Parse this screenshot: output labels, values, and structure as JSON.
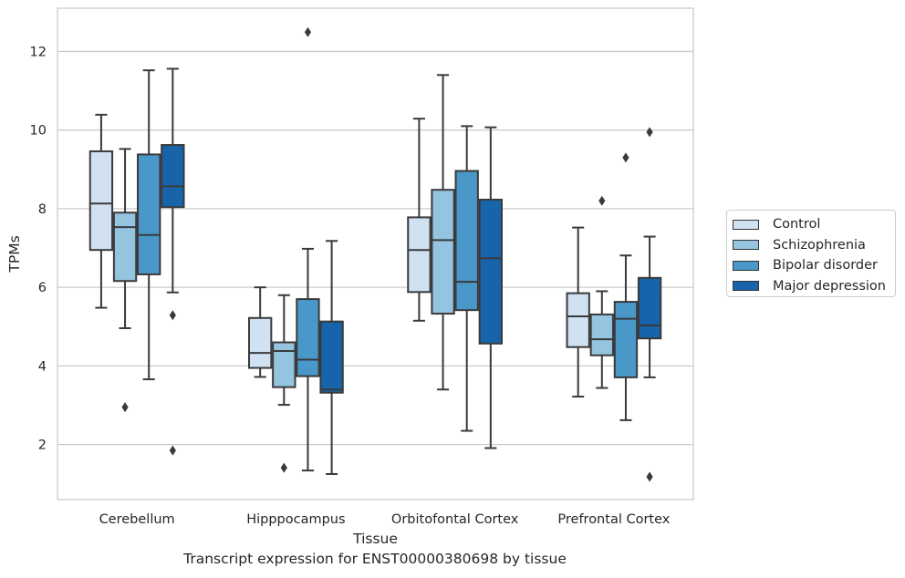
{
  "caption": "Transcript expression for ENST00000380698 by tissue",
  "chart_data": {
    "type": "boxplot",
    "xlabel": "Tissue",
    "ylabel": "TPMs",
    "ylim": [
      0.6,
      13.1
    ],
    "yticks": [
      2,
      4,
      6,
      8,
      10,
      12
    ],
    "grid": "horizontal",
    "legend_position": "right",
    "categories": [
      "Cerebellum",
      "Hipppocampus",
      "Orbitofontal Cortex",
      "Prefrontal Cortex"
    ],
    "series": [
      {
        "name": "Control",
        "color": "#d0e1f2",
        "boxes": [
          {
            "whisker_low": 5.48,
            "q1": 6.95,
            "median": 8.13,
            "q3": 9.46,
            "whisker_high": 10.39,
            "outliers": []
          },
          {
            "whisker_low": 3.72,
            "q1": 3.95,
            "median": 4.33,
            "q3": 5.22,
            "whisker_high": 6.0,
            "outliers": []
          },
          {
            "whisker_low": 5.15,
            "q1": 5.88,
            "median": 6.95,
            "q3": 7.78,
            "whisker_high": 10.29,
            "outliers": []
          },
          {
            "whisker_low": 3.22,
            "q1": 4.48,
            "median": 5.26,
            "q3": 5.85,
            "whisker_high": 7.52,
            "outliers": []
          }
        ]
      },
      {
        "name": "Schizophrenia",
        "color": "#94c4df",
        "boxes": [
          {
            "whisker_low": 4.96,
            "q1": 6.16,
            "median": 7.53,
            "q3": 7.9,
            "whisker_high": 9.52,
            "outliers": [
              2.95
            ]
          },
          {
            "whisker_low": 3.01,
            "q1": 3.46,
            "median": 4.38,
            "q3": 4.6,
            "whisker_high": 5.8,
            "outliers": [
              1.41
            ]
          },
          {
            "whisker_low": 3.4,
            "q1": 5.33,
            "median": 7.2,
            "q3": 8.48,
            "whisker_high": 11.4,
            "outliers": []
          },
          {
            "whisker_low": 3.44,
            "q1": 4.27,
            "median": 4.68,
            "q3": 5.31,
            "whisker_high": 5.9,
            "outliers": [
              8.2
            ]
          }
        ]
      },
      {
        "name": "Bipolar disorder",
        "color": "#4a98c9",
        "boxes": [
          {
            "whisker_low": 3.66,
            "q1": 6.33,
            "median": 7.33,
            "q3": 9.38,
            "whisker_high": 11.52,
            "outliers": []
          },
          {
            "whisker_low": 1.34,
            "q1": 3.74,
            "median": 4.16,
            "q3": 5.7,
            "whisker_high": 6.98,
            "outliers": [
              12.49
            ]
          },
          {
            "whisker_low": 2.35,
            "q1": 5.42,
            "median": 6.14,
            "q3": 8.96,
            "whisker_high": 10.1,
            "outliers": []
          },
          {
            "whisker_low": 2.62,
            "q1": 3.71,
            "median": 5.2,
            "q3": 5.63,
            "whisker_high": 6.81,
            "outliers": [
              9.3
            ]
          }
        ]
      },
      {
        "name": "Major depression",
        "color": "#1764ab",
        "boxes": [
          {
            "whisker_low": 5.87,
            "q1": 8.04,
            "median": 8.57,
            "q3": 9.62,
            "whisker_high": 11.56,
            "outliers": [
              5.29,
              1.85
            ]
          },
          {
            "whisker_low": 1.25,
            "q1": 3.32,
            "median": 3.4,
            "q3": 5.13,
            "whisker_high": 7.18,
            "outliers": []
          },
          {
            "whisker_low": 1.91,
            "q1": 4.57,
            "median": 6.74,
            "q3": 8.23,
            "whisker_high": 10.07,
            "outliers": []
          },
          {
            "whisker_low": 3.71,
            "q1": 4.7,
            "median": 5.03,
            "q3": 6.24,
            "whisker_high": 7.29,
            "outliers": [
              9.95,
              1.18
            ]
          }
        ]
      }
    ]
  }
}
